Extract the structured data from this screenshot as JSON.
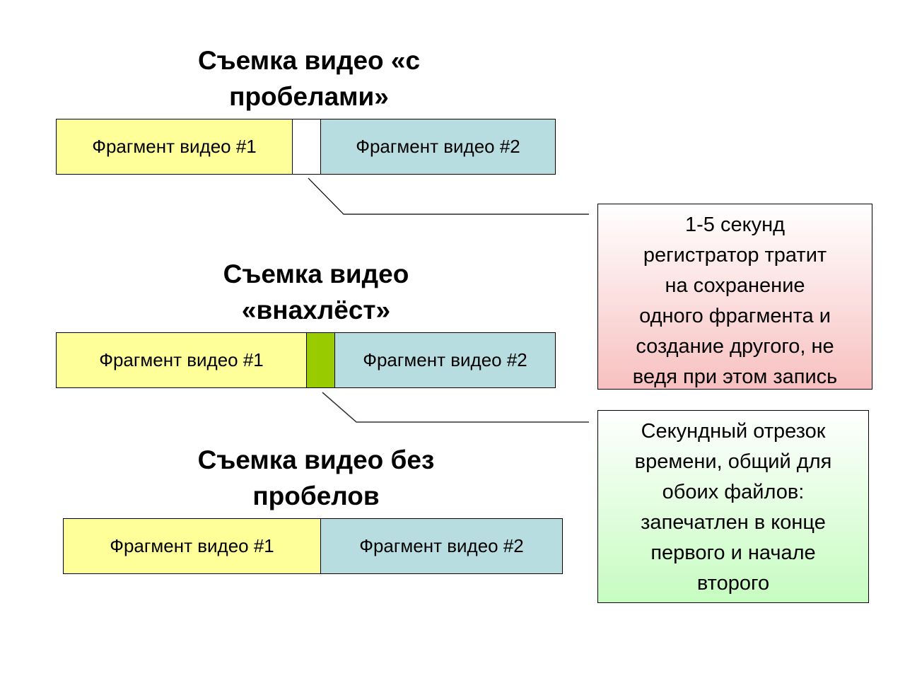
{
  "sections": [
    {
      "title": "Съемка видео «с пробелами»",
      "title_lines": [
        "Съемка видео «с",
        "пробелами»"
      ],
      "fragment1": "Фрагмент видео #1",
      "fragment2": "Фрагмент видео #2",
      "middle": "gap"
    },
    {
      "title": "Съемка видео «внахлёст»",
      "title_lines": [
        "Съемка видео",
        "«внахлёст»"
      ],
      "fragment1": "Фрагмент видео #1",
      "fragment2": "Фрагмент видео #2",
      "middle": "overlap"
    },
    {
      "title": "Съемка видео без пробелов",
      "title_lines": [
        "Съемка видео без",
        "пробелов"
      ],
      "fragment1": "Фрагмент видео #1",
      "fragment2": "Фрагмент видео #2",
      "middle": "none"
    }
  ],
  "notes": [
    {
      "text": "1-5 секунд регистратор тратит на сохранение одного фрагмента и создание другого, не ведя при этом запись",
      "lines": [
        "1-5 секунд",
        "регистратор тратит",
        "на сохранение",
        "одного фрагмента и",
        "создание другого, не",
        "ведя при этом запись"
      ],
      "gradient": [
        "#ffffff",
        "#f8c0c0"
      ]
    },
    {
      "text": "Секундный отрезок времени, общий для обоих файлов: запечатлен в конце первого и начале второго",
      "lines": [
        "Секундный отрезок",
        "времени, общий для",
        "обоих файлов:",
        "запечатлен в конце",
        "первого и начале",
        "второго"
      ],
      "gradient": [
        "#ffffff",
        "#c6fcc0"
      ]
    }
  ],
  "colors": {
    "fragment1": "#ffff99",
    "fragment2": "#b7dde1",
    "overlap": "#99cc00"
  }
}
